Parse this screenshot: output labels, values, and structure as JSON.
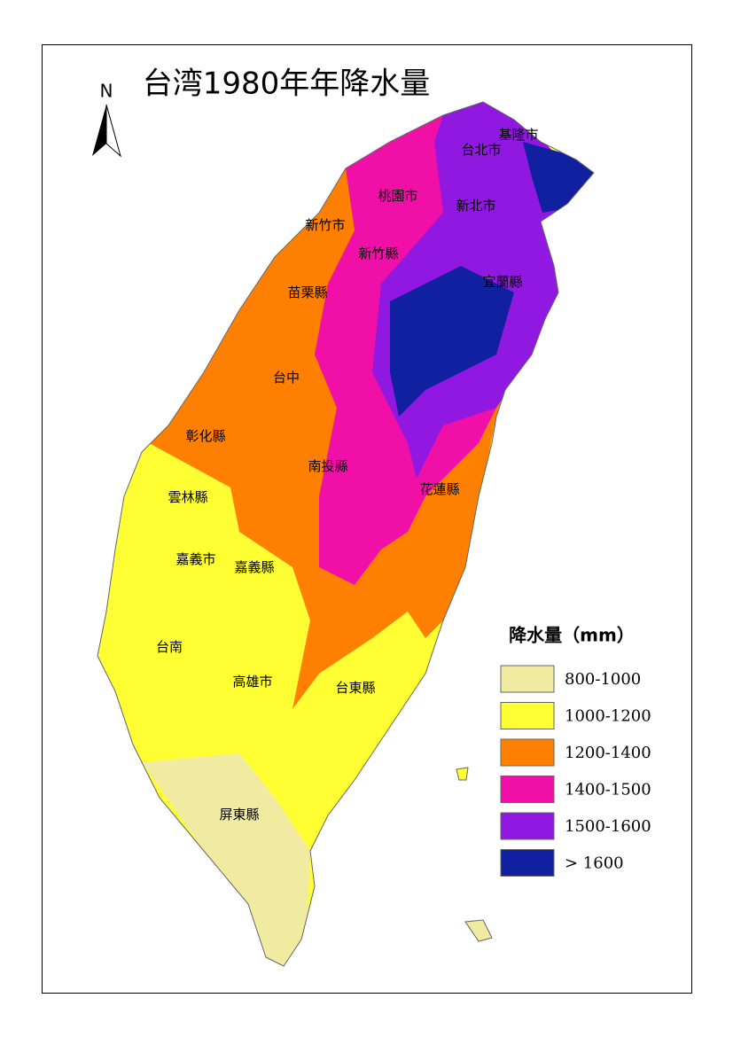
{
  "title": "台湾1980年年降水量",
  "north_label": "N",
  "regions": [
    "基隆市",
    "台北市",
    "桃園市",
    "新北市",
    "新竹市",
    "新竹縣",
    "宜蘭縣",
    "苗栗縣",
    "台中",
    "彰化縣",
    "南投縣",
    "花蓮縣",
    "雲林縣",
    "嘉義市",
    "嘉義縣",
    "台南",
    "高雄市",
    "台東縣",
    "屏東縣"
  ],
  "legend": {
    "title": "降水量（mm）",
    "items": [
      {
        "label": "800-1000",
        "color": "#f0eba0"
      },
      {
        "label": "1000-1200",
        "color": "#ffff33"
      },
      {
        "label": "1200-1400",
        "color": "#ff8000"
      },
      {
        "label": "1400-1500",
        "color": "#f010a8"
      },
      {
        "label": "1500-1600",
        "color": "#9018e0"
      },
      {
        "label": "> 1600",
        "color": "#1020a0"
      }
    ]
  }
}
